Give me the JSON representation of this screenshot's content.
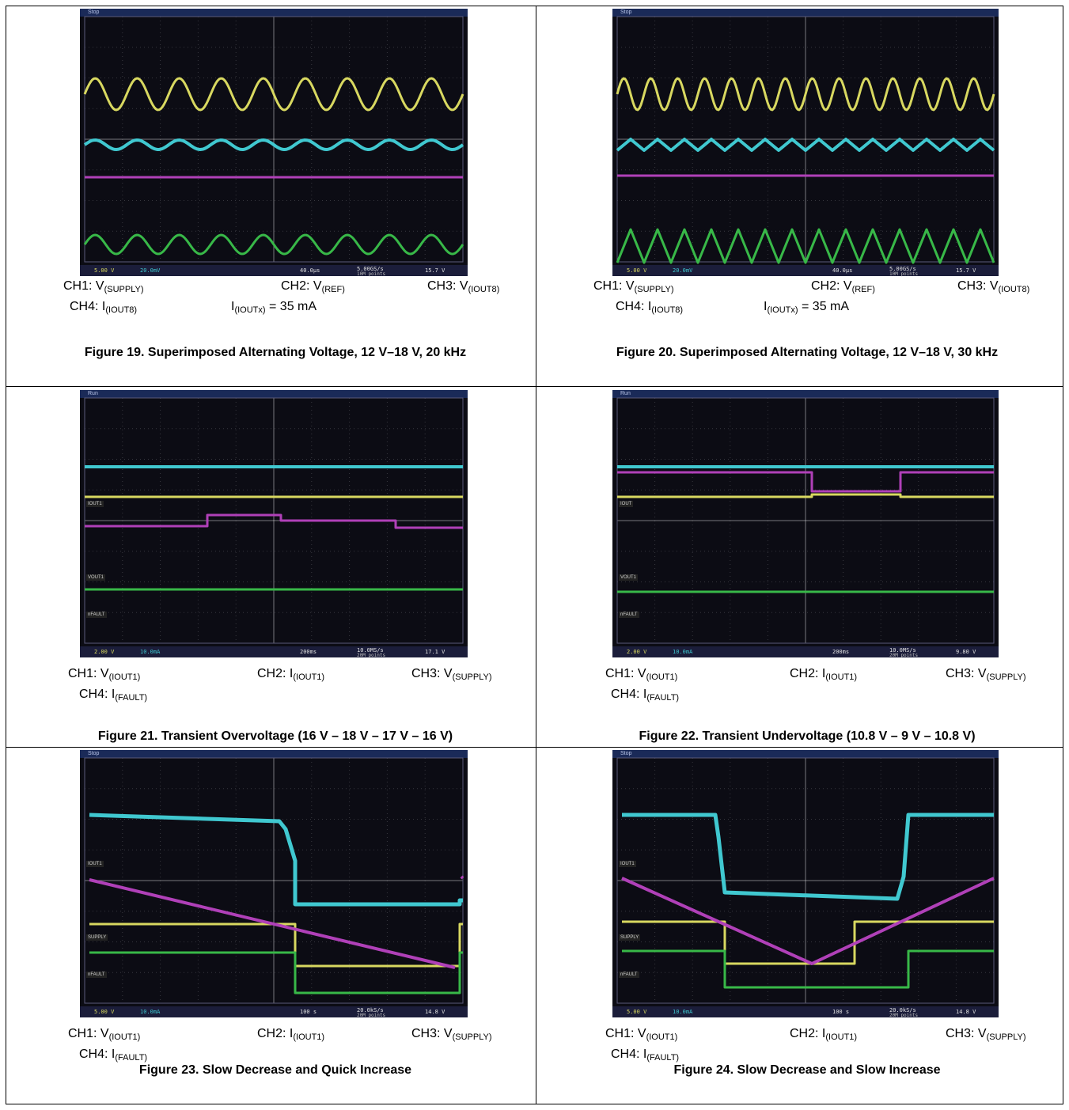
{
  "figures": [
    {
      "id": "fig19",
      "title": "Figure 19. Superimposed Alternating Voltage, 12 V–18 V, 20 kHz",
      "scope_state": "Stop",
      "status": {
        "ch1": "5.00 V",
        "ch2": "20.0mV",
        "timebase": "40.0µs",
        "sample": "5.00GS/s",
        "points": "10M points",
        "trigger": "15.7 V"
      },
      "channel_markers": [],
      "legend": [
        {
          "ch": "CH1: ",
          "sym": "V",
          "sub": "(SUPPLY)"
        },
        {
          "ch": "CH2: ",
          "sym": "V",
          "sub": "(REF)"
        },
        {
          "ch": "CH3: ",
          "sym": "V",
          "sub": "(IOUT8)"
        },
        {
          "ch": "CH4: ",
          "sym": "I",
          "sub": "(IOUT8)"
        }
      ],
      "extra": {
        "sym": "I",
        "sub": "(IOUTx)",
        "rest": " = 35 mA"
      }
    },
    {
      "id": "fig20",
      "title": "Figure 20. Superimposed Alternating Voltage, 12 V–18 V, 30 kHz",
      "scope_state": "Stop",
      "status": {
        "ch1": "5.00 V",
        "ch2": "20.0mV",
        "timebase": "40.0µs",
        "sample": "5.00GS/s",
        "points": "10M points",
        "trigger": "15.7 V"
      },
      "channel_markers": [],
      "legend": [
        {
          "ch": "CH1: ",
          "sym": "V",
          "sub": "(SUPPLY)"
        },
        {
          "ch": "CH2: ",
          "sym": "V",
          "sub": "(REF)"
        },
        {
          "ch": "CH3: ",
          "sym": "V",
          "sub": "(IOUT8)"
        },
        {
          "ch": "CH4: ",
          "sym": "I",
          "sub": "(IOUT8)"
        }
      ],
      "extra": {
        "sym": "I",
        "sub": "(IOUTx)",
        "rest": " = 35 mA"
      }
    },
    {
      "id": "fig21",
      "title": "Figure 21. Transient Overvoltage (16 V – 18 V – 17 V – 16 V)",
      "scope_state": "Run",
      "status": {
        "ch1": "2.00 V",
        "ch2": "10.0mA",
        "timebase": "200ms",
        "sample": "10.0MS/s",
        "points": "20M points",
        "trigger": "17.1 V"
      },
      "channel_markers": [
        "IOUT1",
        "VOUT1",
        "nFAULT"
      ],
      "legend": [
        {
          "ch": "CH1: ",
          "sym": "V",
          "sub": "(IOUT1)"
        },
        {
          "ch": "CH2: ",
          "sym": "I",
          "sub": "(IOUT1)"
        },
        {
          "ch": "CH3: ",
          "sym": "V",
          "sub": "(SUPPLY)"
        },
        {
          "ch": "CH4: ",
          "sym": "I",
          "sub": "(FAULT)"
        }
      ]
    },
    {
      "id": "fig22",
      "title": "Figure 22. Transient Undervoltage (10.8 V – 9 V – 10.8 V)",
      "scope_state": "Run",
      "status": {
        "ch1": "2.00 V",
        "ch2": "10.0mA",
        "timebase": "200ms",
        "sample": "10.0MS/s",
        "points": "20M points",
        "trigger": "9.80 V"
      },
      "channel_markers": [
        "IOUT",
        "VOUT1",
        "nFAULT"
      ],
      "legend": [
        {
          "ch": "CH1: ",
          "sym": "V",
          "sub": "(IOUT1)"
        },
        {
          "ch": "CH2: ",
          "sym": "I",
          "sub": "(IOUT1)"
        },
        {
          "ch": "CH3: ",
          "sym": "V",
          "sub": "(SUPPLY)"
        },
        {
          "ch": "CH4: ",
          "sym": "I",
          "sub": "(FAULT)"
        }
      ]
    },
    {
      "id": "fig23",
      "title": "Figure 23. Slow Decrease and Quick Increase",
      "scope_state": "Stop",
      "status": {
        "ch1": "5.00 V",
        "ch2": "10.0mA",
        "timebase": "100 s",
        "sample": "20.0kS/s",
        "points": "20M points",
        "trigger": "14.8 V"
      },
      "channel_markers": [
        "IOUT1",
        "SUPPLY",
        "nFAULT"
      ],
      "legend": [
        {
          "ch": "CH1: ",
          "sym": "V",
          "sub": "(IOUT1)"
        },
        {
          "ch": "CH2: ",
          "sym": "I",
          "sub": "(IOUT1)"
        },
        {
          "ch": "CH3: ",
          "sym": "V",
          "sub": "(SUPPLY)"
        },
        {
          "ch": "CH4: ",
          "sym": "I",
          "sub": "(FAULT)"
        }
      ]
    },
    {
      "id": "fig24",
      "title": "Figure 24. Slow Decrease and Slow Increase",
      "scope_state": "Stop",
      "status": {
        "ch1": "5.00 V",
        "ch2": "10.0mA",
        "timebase": "100 s",
        "sample": "20.0kS/s",
        "points": "20M points",
        "trigger": "14.8 V"
      },
      "channel_markers": [
        "IOUT1",
        "SUPPLY",
        "nFAULT"
      ],
      "legend": [
        {
          "ch": "CH1: ",
          "sym": "V",
          "sub": "(IOUT1)"
        },
        {
          "ch": "CH2: ",
          "sym": "I",
          "sub": "(IOUT1)"
        },
        {
          "ch": "CH3: ",
          "sym": "V",
          "sub": "(SUPPLY)"
        },
        {
          "ch": "CH4: ",
          "sym": "I",
          "sub": "(FAULT)"
        }
      ]
    }
  ],
  "colors": {
    "ch1": "#d8d860",
    "ch2": "#40c8d0",
    "ch3": "#b040b8",
    "ch4": "#38b848",
    "grid": "#ffffff"
  }
}
